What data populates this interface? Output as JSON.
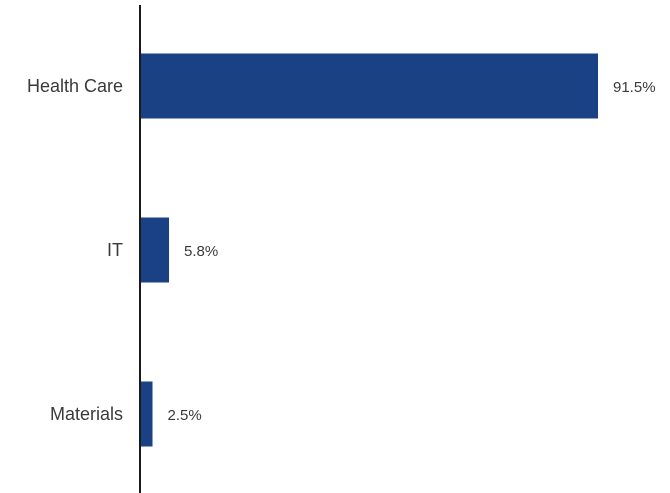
{
  "chart_data": {
    "type": "bar",
    "orientation": "horizontal",
    "categories": [
      "Health Care",
      "IT",
      "Materials"
    ],
    "values": [
      91.5,
      5.8,
      2.5
    ],
    "data_labels": [
      "91.5%",
      "5.8%",
      "2.5%"
    ],
    "unit": "%",
    "title": "",
    "xlabel": "",
    "ylabel": "",
    "xlim": [
      0,
      100
    ],
    "grid": false,
    "legend": "none",
    "colors": {
      "bar": "#1b4185",
      "axis": "#1a1a1a",
      "text": "#3a3a3a"
    }
  }
}
